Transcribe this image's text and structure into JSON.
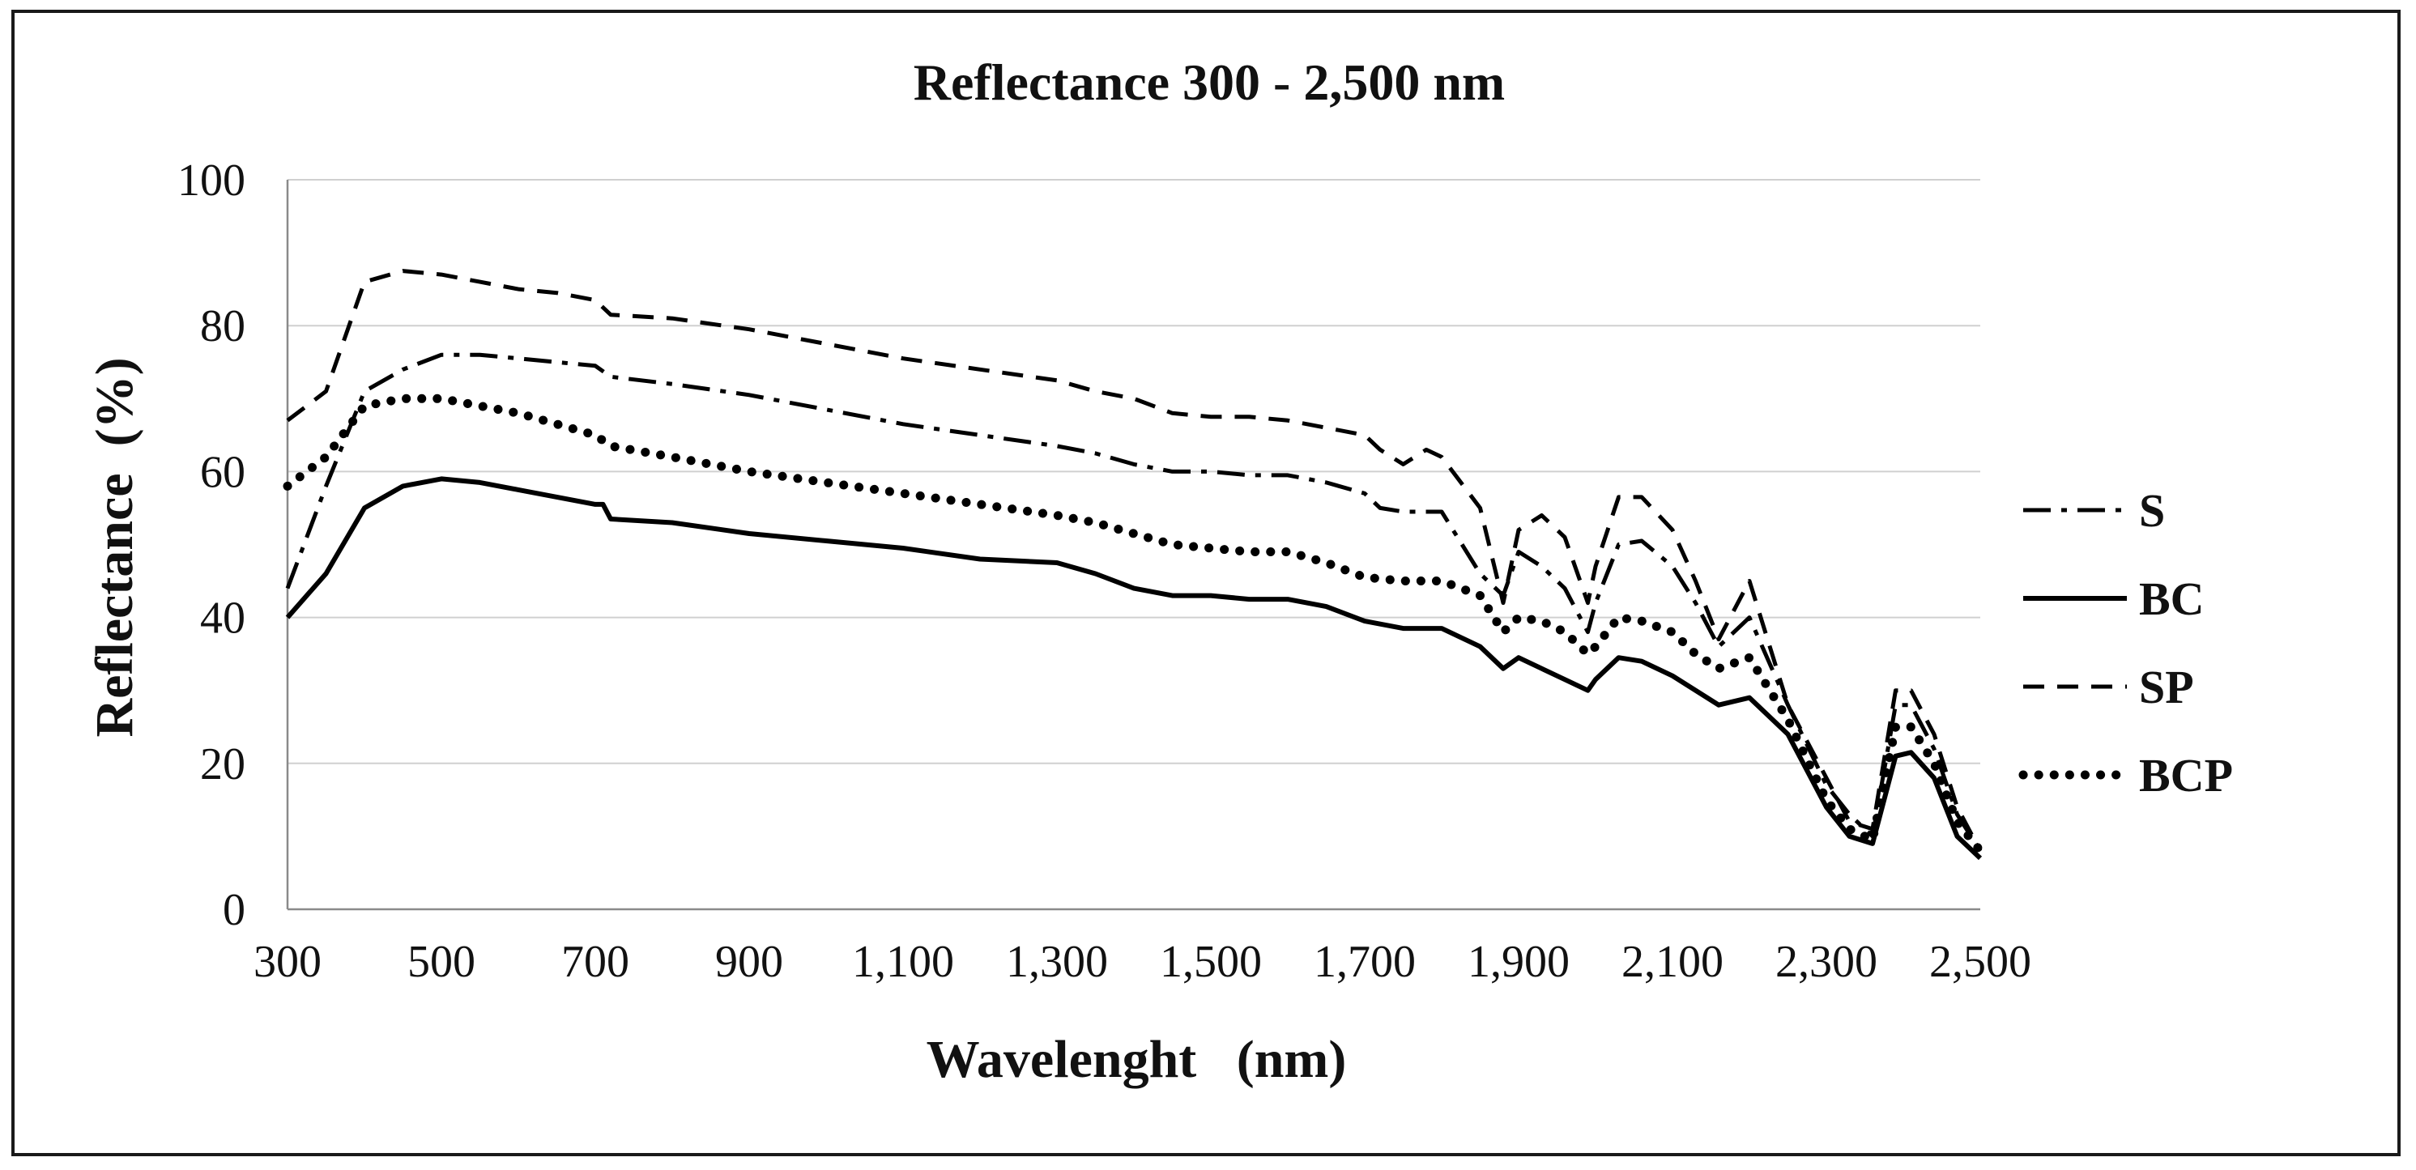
{
  "chart_data": {
    "type": "line",
    "title": "Reflectance 300 - 2,500 nm",
    "xlabel": "Wavelenght   (nm)",
    "ylabel": "Reflectance  (%)",
    "xlim": [
      300,
      2500
    ],
    "ylim": [
      0,
      100
    ],
    "xticks": [
      300,
      500,
      700,
      900,
      1100,
      1300,
      1500,
      1700,
      1900,
      2100,
      2300,
      2500
    ],
    "xtick_labels": [
      "300",
      "500",
      "700",
      "900",
      "1,100",
      "1,300",
      "1,500",
      "1,700",
      "1,900",
      "2,100",
      "2,300",
      "2,500"
    ],
    "yticks": [
      0,
      20,
      40,
      60,
      80,
      100
    ],
    "ytick_labels": [
      "0",
      "20",
      "40",
      "60",
      "80",
      "100"
    ],
    "grid": "horizontal",
    "legend_position": "right",
    "series": [
      {
        "name": "S",
        "style": "dashdot",
        "x": [
          300,
          350,
          400,
          450,
          500,
          550,
          600,
          650,
          700,
          720,
          800,
          900,
          1000,
          1100,
          1200,
          1300,
          1350,
          1400,
          1450,
          1500,
          1550,
          1600,
          1650,
          1700,
          1720,
          1750,
          1800,
          1850,
          1880,
          1900,
          1930,
          1960,
          1990,
          2000,
          2030,
          2060,
          2100,
          2130,
          2160,
          2200,
          2250,
          2300,
          2330,
          2360,
          2390,
          2410,
          2440,
          2470,
          2500
        ],
        "y": [
          44,
          58,
          71,
          74,
          76,
          76,
          75.5,
          75,
          74.5,
          73,
          72,
          70.5,
          68.5,
          66.5,
          65,
          63.5,
          62.5,
          61,
          60,
          60,
          59.5,
          59.5,
          58.5,
          57,
          55,
          54.5,
          54.5,
          46,
          43,
          49,
          47,
          44,
          38,
          42,
          50,
          50.5,
          47,
          42,
          36,
          40,
          28,
          17,
          13,
          10,
          28,
          28,
          22,
          13,
          8
        ]
      },
      {
        "name": "BC",
        "style": "solid",
        "x": [
          300,
          350,
          400,
          450,
          500,
          550,
          600,
          650,
          700,
          710,
          720,
          800,
          900,
          1000,
          1100,
          1200,
          1300,
          1350,
          1400,
          1450,
          1500,
          1550,
          1600,
          1650,
          1700,
          1750,
          1800,
          1850,
          1880,
          1900,
          1930,
          1960,
          1990,
          2000,
          2030,
          2060,
          2100,
          2130,
          2160,
          2200,
          2250,
          2300,
          2330,
          2360,
          2390,
          2410,
          2440,
          2470,
          2500
        ],
        "y": [
          40,
          46,
          55,
          58,
          59,
          58.5,
          57.5,
          56.5,
          55.5,
          55.5,
          53.5,
          53,
          51.5,
          50.5,
          49.5,
          48,
          47.5,
          46,
          44,
          43,
          43,
          42.5,
          42.5,
          41.5,
          39.5,
          38.5,
          38.5,
          36,
          33,
          34.5,
          33,
          31.5,
          30,
          31.5,
          34.5,
          34,
          32,
          30,
          28,
          29,
          24,
          14,
          10,
          9,
          21,
          21.5,
          18,
          10,
          7
        ]
      },
      {
        "name": "SP",
        "style": "dashed",
        "x": [
          300,
          350,
          400,
          450,
          500,
          550,
          600,
          650,
          700,
          720,
          800,
          900,
          1000,
          1100,
          1200,
          1300,
          1350,
          1400,
          1450,
          1500,
          1550,
          1600,
          1650,
          1700,
          1720,
          1750,
          1780,
          1800,
          1850,
          1880,
          1900,
          1930,
          1960,
          1990,
          2000,
          2030,
          2060,
          2100,
          2130,
          2160,
          2200,
          2250,
          2300,
          2330,
          2360,
          2390,
          2410,
          2440,
          2470,
          2500
        ],
        "y": [
          67,
          71,
          86,
          87.5,
          87,
          86,
          85,
          84.5,
          83.5,
          81.5,
          81,
          79.5,
          77.5,
          75.5,
          74,
          72.5,
          71,
          70,
          68,
          67.5,
          67.5,
          67,
          66,
          65,
          63,
          61,
          63,
          62,
          55,
          42,
          52,
          54,
          51,
          42,
          47,
          56.5,
          56.5,
          52,
          45,
          37,
          45,
          28,
          18,
          12,
          11,
          30,
          30,
          24,
          14,
          8
        ]
      },
      {
        "name": "BCP",
        "style": "dotted",
        "x": [
          300,
          350,
          400,
          450,
          500,
          550,
          600,
          650,
          700,
          720,
          800,
          900,
          1000,
          1100,
          1200,
          1300,
          1350,
          1400,
          1450,
          1500,
          1550,
          1600,
          1650,
          1700,
          1750,
          1800,
          1850,
          1880,
          1900,
          1930,
          1960,
          1990,
          2000,
          2030,
          2060,
          2100,
          2130,
          2160,
          2200,
          2250,
          2300,
          2330,
          2360,
          2390,
          2410,
          2440,
          2470,
          2500
        ],
        "y": [
          58,
          62,
          69,
          70,
          70,
          69,
          68,
          66.5,
          65,
          63.5,
          62,
          60,
          58.5,
          57,
          55.5,
          54,
          53,
          51.5,
          50,
          49.5,
          49,
          49,
          47.5,
          45.5,
          45,
          45,
          43,
          38,
          40,
          39.5,
          38,
          35,
          36,
          40,
          39.5,
          38,
          35,
          33,
          34.5,
          26,
          15,
          11,
          9.5,
          25,
          25,
          20,
          12,
          8
        ]
      }
    ]
  }
}
